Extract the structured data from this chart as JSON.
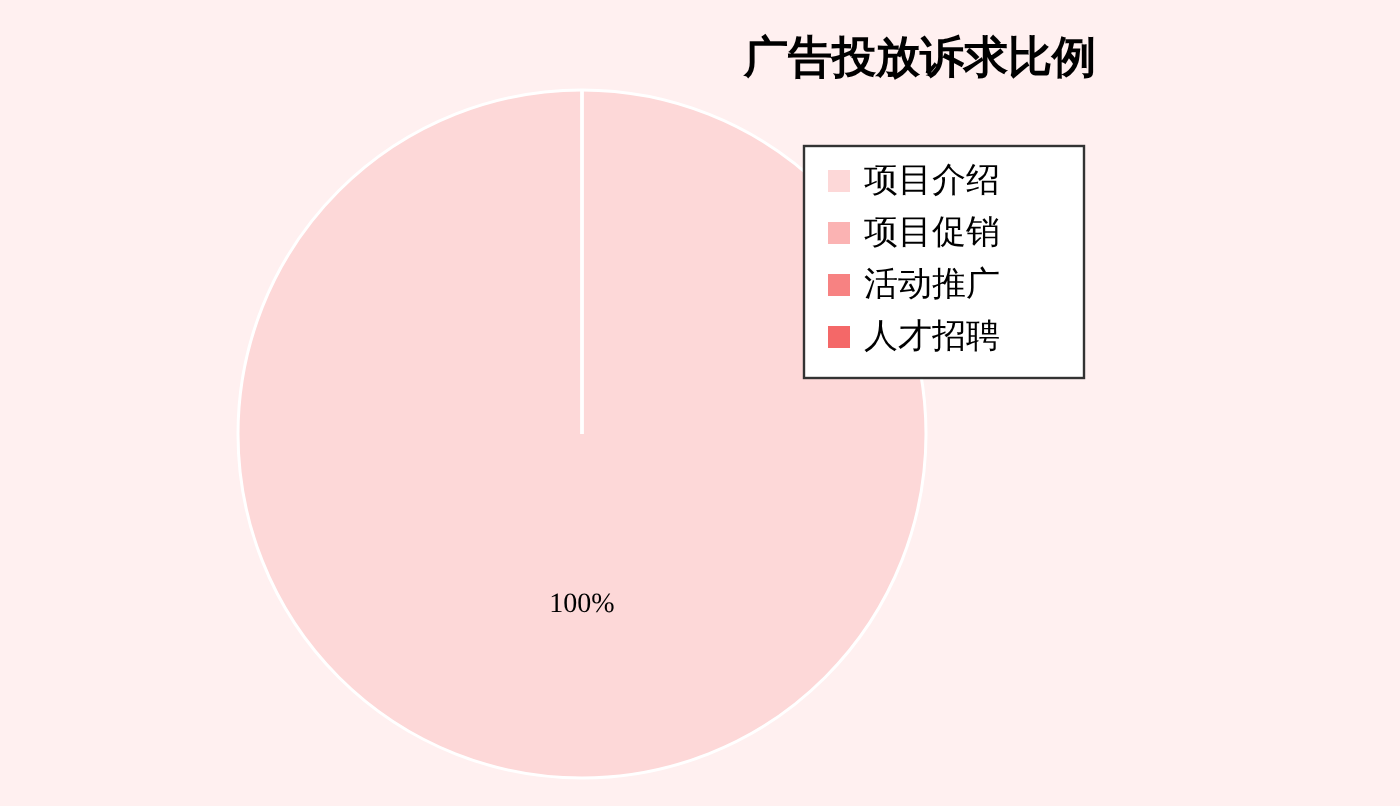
{
  "chart_data": {
    "type": "pie",
    "title": "广告投放诉求比例",
    "categories": [
      "项目介绍",
      "项目促销",
      "活动推广",
      "人才招聘"
    ],
    "values": [
      100,
      0,
      0,
      0
    ],
    "colors": [
      "#fdd8d8",
      "#fbb3b3",
      "#f78282",
      "#f46868"
    ],
    "value_labels": [
      "100%",
      null,
      null,
      null
    ],
    "legend": "top right"
  }
}
